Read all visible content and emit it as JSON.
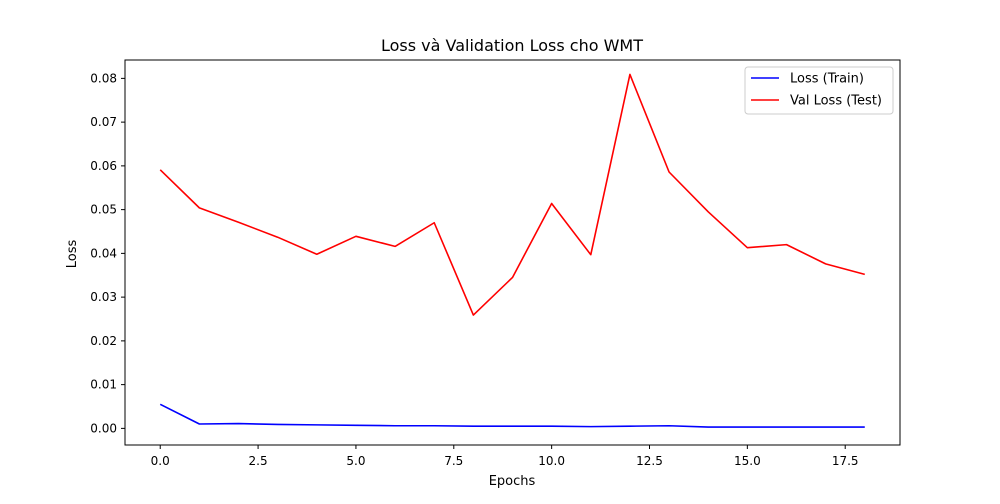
{
  "chart_data": {
    "type": "line",
    "title": "Loss và Validation Loss cho WMT",
    "xlabel": "Epochs",
    "ylabel": "Loss",
    "xlim": [
      -0.9,
      18.9
    ],
    "ylim": [
      -0.0038,
      0.0842
    ],
    "xticks": [
      0.0,
      2.5,
      5.0,
      7.5,
      10.0,
      12.5,
      15.0,
      17.5
    ],
    "xtick_labels": [
      "0.0",
      "2.5",
      "5.0",
      "7.5",
      "10.0",
      "12.5",
      "15.0",
      "17.5"
    ],
    "yticks": [
      0.0,
      0.01,
      0.02,
      0.03,
      0.04,
      0.05,
      0.06,
      0.07,
      0.08
    ],
    "ytick_labels": [
      "0.00",
      "0.01",
      "0.02",
      "0.03",
      "0.04",
      "0.05",
      "0.06",
      "0.07",
      "0.08"
    ],
    "grid": false,
    "legend_position": "top-right",
    "x": [
      0,
      1,
      2,
      3,
      4,
      5,
      6,
      7,
      8,
      9,
      10,
      11,
      12,
      13,
      14,
      15,
      16,
      17,
      18
    ],
    "series": [
      {
        "name": "Loss (Train)",
        "color": "#0000ff",
        "values": [
          0.0055,
          0.001,
          0.0011,
          0.0009,
          0.0008,
          0.0007,
          0.0006,
          0.0006,
          0.0005,
          0.0005,
          0.0005,
          0.0004,
          0.0005,
          0.0006,
          0.0003,
          0.0003,
          0.0003,
          0.0003,
          0.0003
        ]
      },
      {
        "name": "Val Loss (Test)",
        "color": "#ff0000",
        "values": [
          0.0591,
          0.0504,
          0.0471,
          0.0437,
          0.0398,
          0.0439,
          0.0416,
          0.047,
          0.0259,
          0.0345,
          0.0514,
          0.0397,
          0.0809,
          0.0586,
          0.0495,
          0.0413,
          0.042,
          0.0376,
          0.0352
        ]
      }
    ]
  }
}
